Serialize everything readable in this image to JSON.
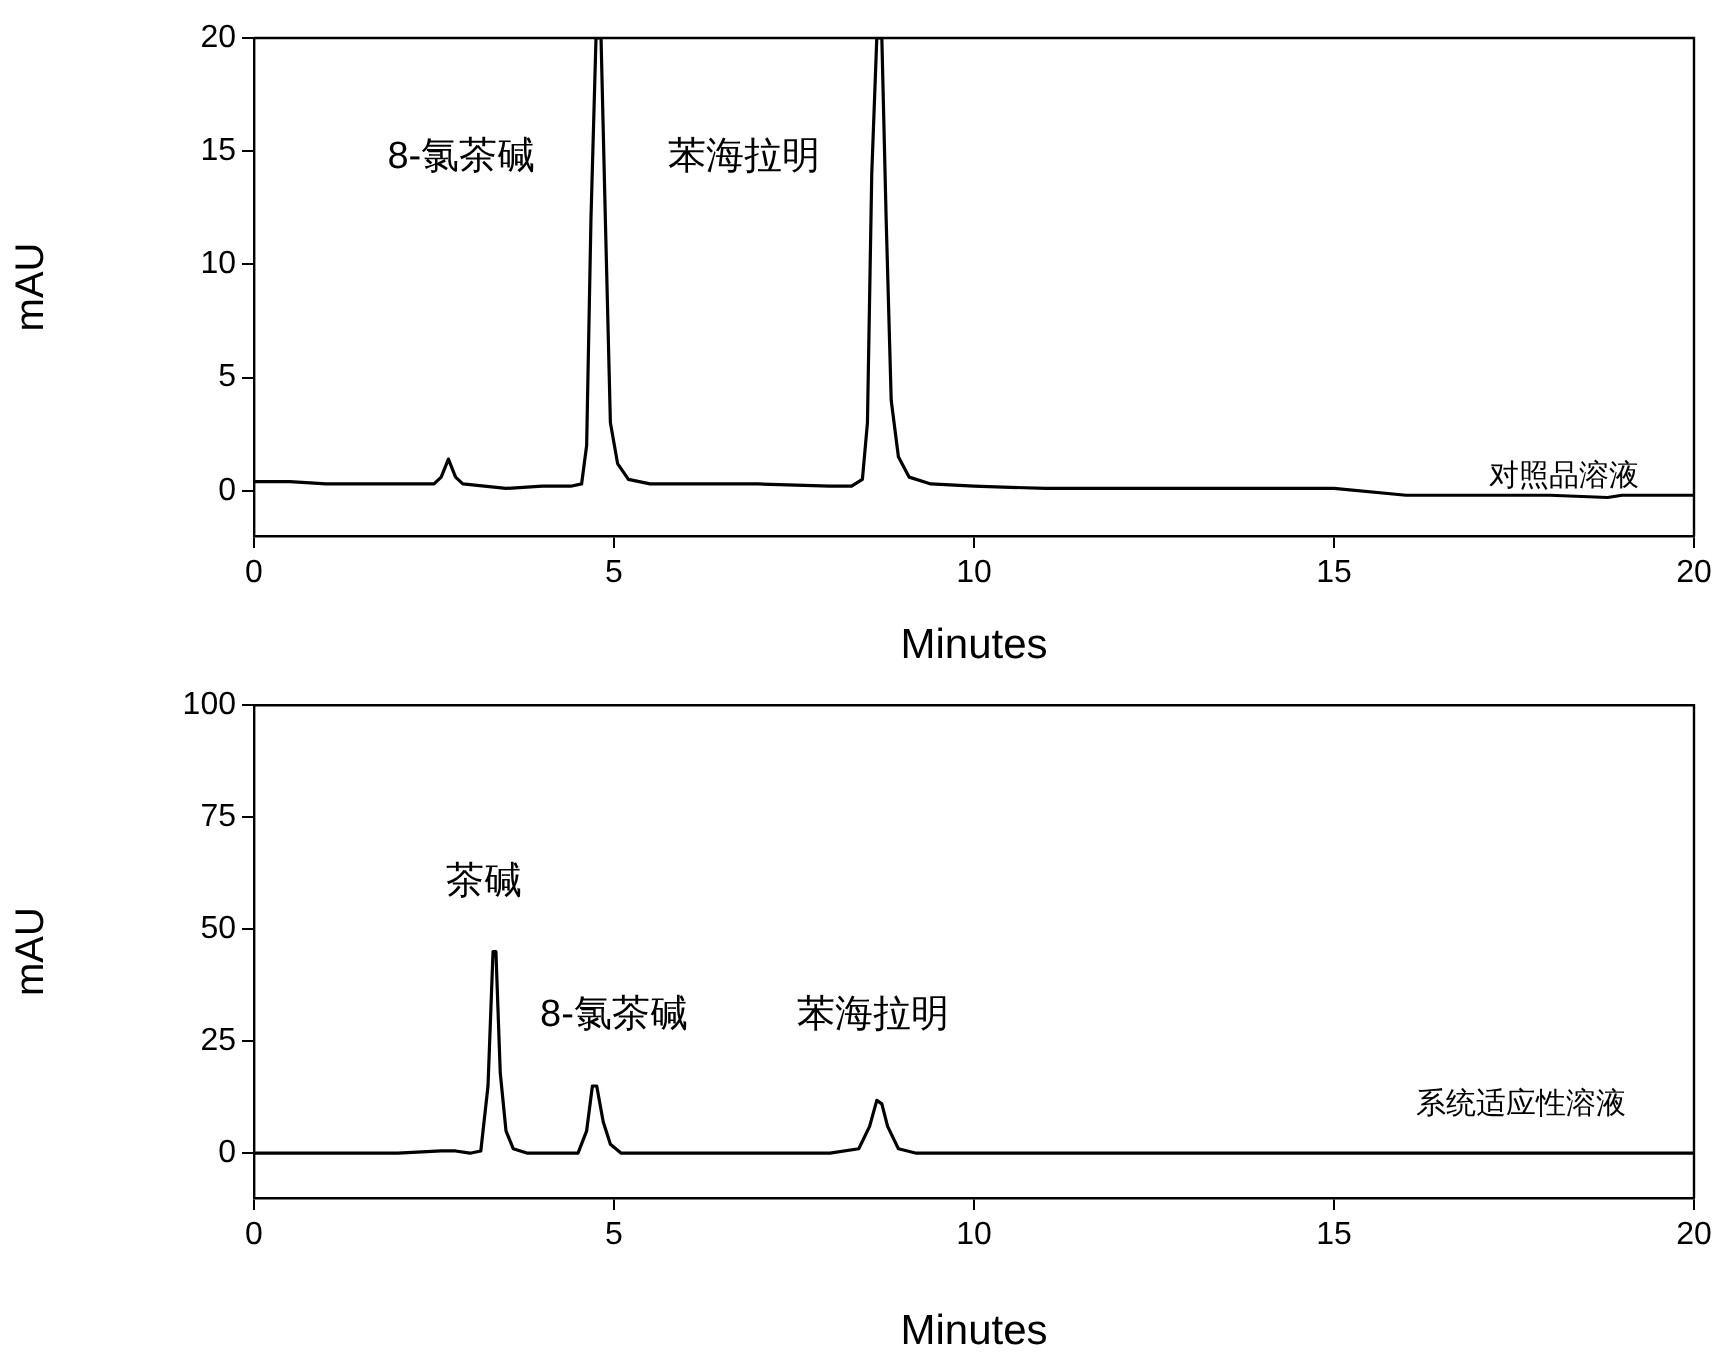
{
  "chart_data": [
    {
      "type": "line",
      "xlabel": "Minutes",
      "ylabel": "mAU",
      "marker": "none",
      "line_style": "solid",
      "grid": false,
      "legend": false,
      "xlim": [
        0,
        20
      ],
      "xticks": [
        0,
        5,
        10,
        15,
        20
      ],
      "ylim": [
        -2,
        20
      ],
      "yticks": [
        0,
        5,
        10,
        15,
        20
      ],
      "x": [
        0,
        0.5,
        1,
        1.5,
        2,
        2.5,
        2.6,
        2.7,
        2.8,
        2.9,
        3.2,
        3.5,
        4,
        4.4,
        4.55,
        4.62,
        4.68,
        4.75,
        4.82,
        4.88,
        4.95,
        5.05,
        5.2,
        5.5,
        6,
        7,
        8,
        8.3,
        8.45,
        8.52,
        8.58,
        8.65,
        8.72,
        8.78,
        8.85,
        8.95,
        9.1,
        9.4,
        10,
        11,
        12,
        13,
        14,
        15,
        16,
        16.5,
        17,
        18,
        18.8,
        19,
        20
      ],
      "series": [
        {
          "color": "#000000",
          "values": [
            0.4,
            0.4,
            0.3,
            0.3,
            0.3,
            0.3,
            0.6,
            1.4,
            0.6,
            0.3,
            0.2,
            0.1,
            0.2,
            0.2,
            0.3,
            2,
            12,
            20,
            20,
            12,
            3,
            1.2,
            0.5,
            0.3,
            0.3,
            0.3,
            0.2,
            0.2,
            0.5,
            3,
            14,
            20,
            20,
            12,
            4,
            1.5,
            0.6,
            0.3,
            0.2,
            0.1,
            0.1,
            0.1,
            0.1,
            0.1,
            -0.2,
            -0.2,
            -0.2,
            -0.2,
            -0.3,
            -0.2,
            -0.2
          ]
        }
      ],
      "annotations": [
        "8-氯茶碱",
        "苯海拉明",
        "对照品溶液"
      ]
    },
    {
      "type": "line",
      "xlabel": "Minutes",
      "ylabel": "mAU",
      "marker": "none",
      "line_style": "solid",
      "grid": false,
      "legend": false,
      "xlim": [
        0,
        20
      ],
      "xticks": [
        0,
        5,
        10,
        15,
        20
      ],
      "ylim": [
        -10,
        100
      ],
      "yticks": [
        0,
        25,
        50,
        75,
        100
      ],
      "x": [
        0,
        1,
        2,
        2.6,
        2.8,
        3.0,
        3.15,
        3.25,
        3.32,
        3.36,
        3.42,
        3.5,
        3.6,
        3.8,
        4,
        4.5,
        4.62,
        4.7,
        4.76,
        4.85,
        4.95,
        5.1,
        5.5,
        6,
        7,
        8,
        8.4,
        8.55,
        8.65,
        8.72,
        8.8,
        8.95,
        9.2,
        10,
        12,
        14,
        16,
        18,
        20
      ],
      "series": [
        {
          "color": "#000000",
          "values": [
            0,
            0,
            0,
            0.5,
            0.5,
            0,
            0.5,
            15,
            45,
            45,
            18,
            5,
            1,
            0,
            0,
            0,
            5,
            15,
            15,
            7,
            2,
            0,
            0,
            0,
            0,
            0,
            1,
            6,
            11.8,
            11,
            6,
            1,
            0,
            0,
            0,
            0,
            0,
            0,
            0
          ]
        }
      ],
      "annotations": [
        "茶碱",
        "8-氯茶碱",
        "苯海拉明",
        "系统适应性溶液"
      ]
    }
  ]
}
